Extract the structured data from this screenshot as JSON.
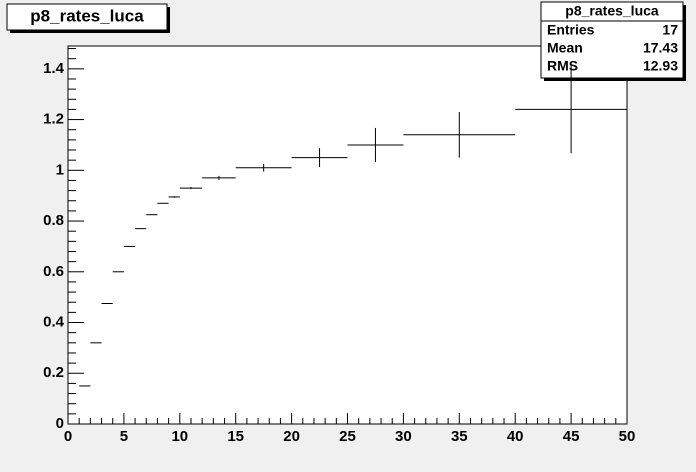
{
  "chart_data": {
    "type": "histogram",
    "title": "p8_rates_luca",
    "bins": [
      1,
      2,
      3,
      4,
      5,
      6,
      7,
      8,
      9,
      10,
      12,
      15,
      20,
      25,
      30,
      40,
      50
    ],
    "values": [
      0.15,
      0.32,
      0.475,
      0.6,
      0.7,
      0.77,
      0.825,
      0.87,
      0.895,
      0.93,
      0.97,
      1.01,
      1.05,
      1.1,
      1.14,
      1.24
    ],
    "errors": [
      0,
      0,
      0,
      0,
      0,
      0,
      0,
      0,
      0.003,
      0.004,
      0.008,
      0.015,
      0.037,
      0.067,
      0.09,
      0.173
    ],
    "color": "#000000",
    "xlim": [
      0,
      50
    ],
    "xticks": [
      0,
      5,
      10,
      15,
      20,
      25,
      30,
      35,
      40,
      45,
      50
    ],
    "ylim": [
      0,
      1.49
    ],
    "yticks": [
      0,
      0.2,
      0.4,
      0.6,
      0.8,
      1,
      1.2,
      1.4
    ],
    "stats": {
      "name": "p8_rates_luca",
      "rows": [
        {
          "label": "Entries",
          "value": 17
        },
        {
          "label": "Mean",
          "value": 17.43
        },
        {
          "label": "RMS",
          "value": 12.93
        }
      ]
    }
  }
}
